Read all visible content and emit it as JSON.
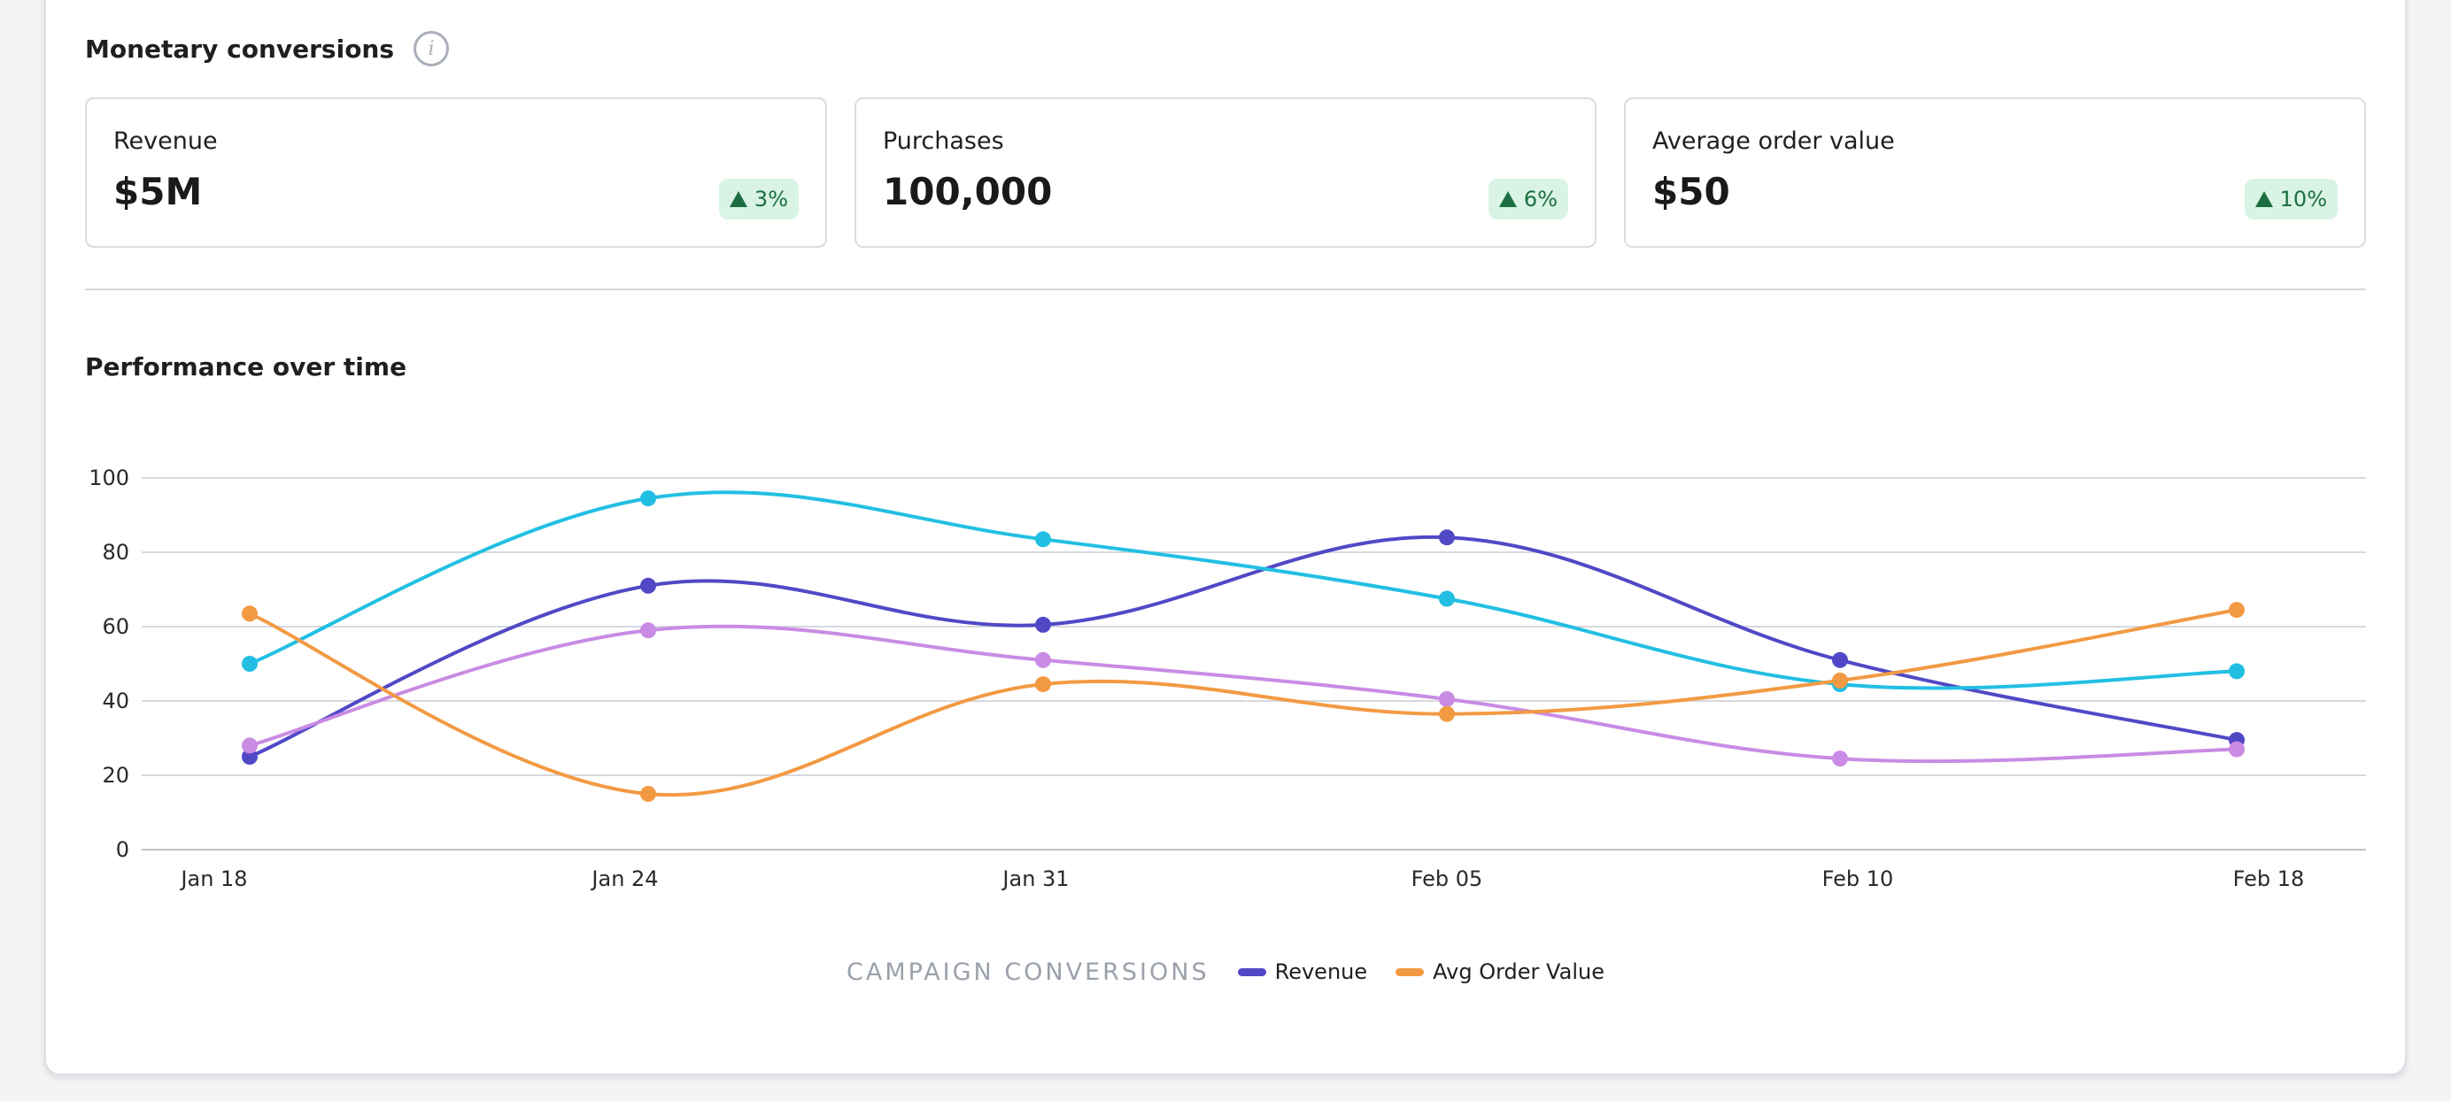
{
  "section": {
    "title": "Monetary conversions",
    "info_icon": "info-icon"
  },
  "cards": [
    {
      "label": "Revenue",
      "value": "$5M",
      "change": "3%",
      "trend": "up"
    },
    {
      "label": "Purchases",
      "value": "100,000",
      "change": "6%",
      "trend": "up"
    },
    {
      "label": "Average order value",
      "value": "$50",
      "change": "10%",
      "trend": "up"
    }
  ],
  "chart_title": "Performance over time",
  "colors": {
    "positive_badge_bg": "#d9f4e4",
    "positive_badge_text": "#1c6e42"
  },
  "chart_data": {
    "type": "line",
    "title": "Performance over time",
    "x": [
      "Jan 18",
      "Jan 24",
      "Jan 31",
      "Feb 05",
      "Feb 10",
      "Feb 18"
    ],
    "y_ticks": [
      0,
      20,
      40,
      60,
      80,
      100
    ],
    "ylim": [
      0,
      100
    ],
    "grid": true,
    "legend": {
      "title": "CAMPAIGN CONVERSIONS",
      "placement": "bottom-center"
    },
    "series": [
      {
        "name": "Revenue",
        "color": "#5148c6",
        "values": [
          25,
          71,
          60.5,
          84,
          51,
          29.5
        ],
        "in_legend": true
      },
      {
        "color": "#22bfe3",
        "values": [
          50,
          94.5,
          83.5,
          67.5,
          44.5,
          48
        ],
        "in_legend": false
      },
      {
        "color": "#c98be3",
        "values": [
          28,
          59,
          51,
          40.5,
          24.5,
          27
        ],
        "in_legend": false
      },
      {
        "name": "Avg Order Value",
        "color": "#f29a43",
        "values": [
          63.5,
          15,
          44.5,
          36.5,
          45.5,
          64.5
        ],
        "in_legend": true
      }
    ]
  }
}
